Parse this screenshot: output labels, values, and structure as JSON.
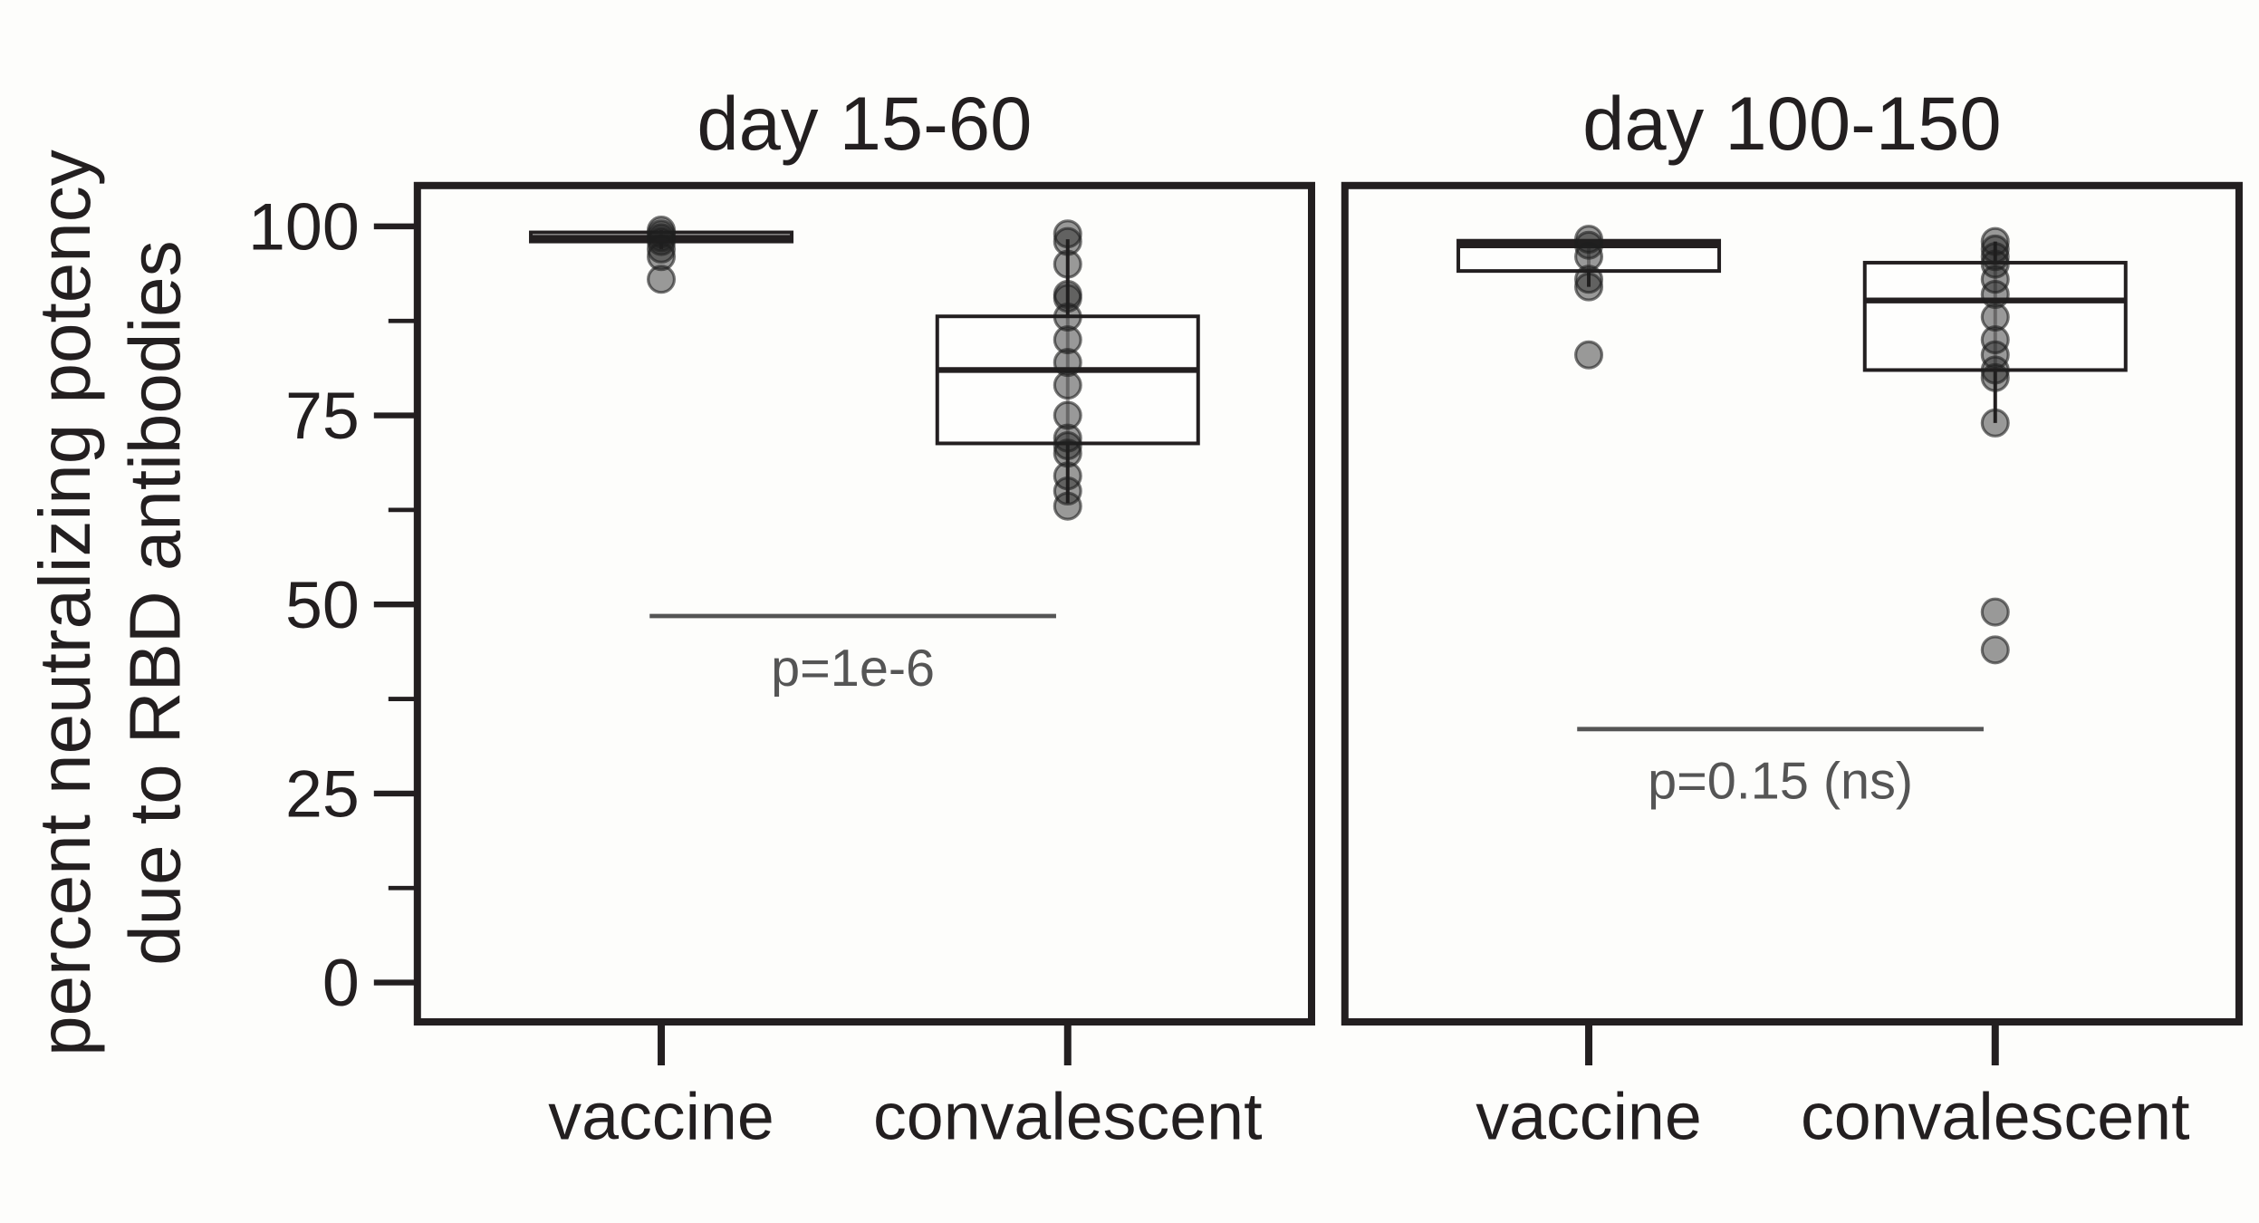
{
  "chart_data": [
    {
      "type": "box",
      "title": "day 15-60",
      "ylabel": [
        "percent neutralizing potency",
        "due to RBD antibodies"
      ],
      "categories": [
        "vaccine",
        "convalescent"
      ],
      "boxes": [
        {
          "q1": 98,
          "median": 98.5,
          "q3": 99.2,
          "whisker_low": 97,
          "whisker_high": 99.5,
          "points": [
            99.5,
            99,
            98.5,
            98,
            97,
            96,
            93
          ]
        },
        {
          "q1": 71.3,
          "median": 81,
          "q3": 88.1,
          "whisker_low": 63.4,
          "whisker_high": 98.3,
          "points": [
            99,
            98,
            95,
            91,
            90.5,
            88,
            85,
            82,
            79,
            75,
            72,
            71,
            70,
            67,
            65,
            63
          ]
        }
      ],
      "ylim": [
        -5.2,
        105.4
      ],
      "yticks": [
        0,
        25,
        50,
        75,
        100
      ],
      "yminor_ticks": [
        12.5,
        37.5,
        62.5,
        87.5
      ],
      "annotation": "p=1e-6"
    },
    {
      "type": "box",
      "title": "day 100-150",
      "categories": [
        "vaccine",
        "convalescent"
      ],
      "boxes": [
        {
          "q1": 94.1,
          "median": 97.5,
          "q3": 98.1,
          "whisker_low": 92,
          "whisker_high": 98.3,
          "points": [
            98.3,
            97.5,
            96,
            93,
            92,
            83
          ]
        },
        {
          "q1": 81,
          "median": 90.2,
          "q3": 95.2,
          "whisker_low": 74,
          "whisker_high": 98,
          "points": [
            98,
            97,
            96,
            95,
            93,
            91,
            88,
            85,
            83,
            81,
            80,
            74,
            49,
            44
          ]
        }
      ],
      "ylim": [
        -5.2,
        105.4
      ],
      "annotation": "p=0.15 (ns)"
    }
  ]
}
